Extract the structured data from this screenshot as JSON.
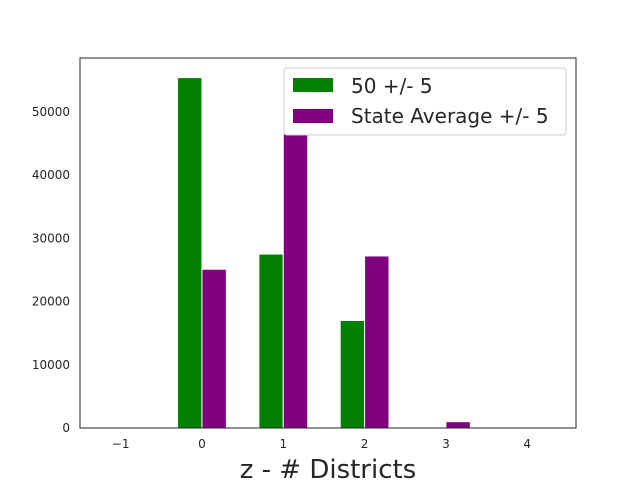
{
  "chart_data": {
    "type": "bar",
    "xlabel": "z - # Districts",
    "ylabel": "",
    "xlim": [
      -1.5,
      4.6
    ],
    "ylim": [
      0,
      58500
    ],
    "xticks": [
      -1,
      0,
      1,
      2,
      3,
      4
    ],
    "xtick_labels": [
      "−1",
      "0",
      "1",
      "2",
      "3",
      "4"
    ],
    "yticks": [
      0,
      10000,
      20000,
      30000,
      40000,
      50000
    ],
    "ytick_labels": [
      "0",
      "10000",
      "20000",
      "30000",
      "40000",
      "50000"
    ],
    "grid": false,
    "legend_position": "top-right",
    "series": [
      {
        "name": "50 +/- 5",
        "color": "#008000",
        "x": [
          0,
          1,
          2
        ],
        "values": [
          55400,
          27500,
          17000
        ]
      },
      {
        "name": "State Average +/- 5",
        "color": "#800080",
        "x": [
          0,
          1,
          2,
          3
        ],
        "values": [
          25100,
          46500,
          27200,
          1000
        ]
      }
    ]
  }
}
